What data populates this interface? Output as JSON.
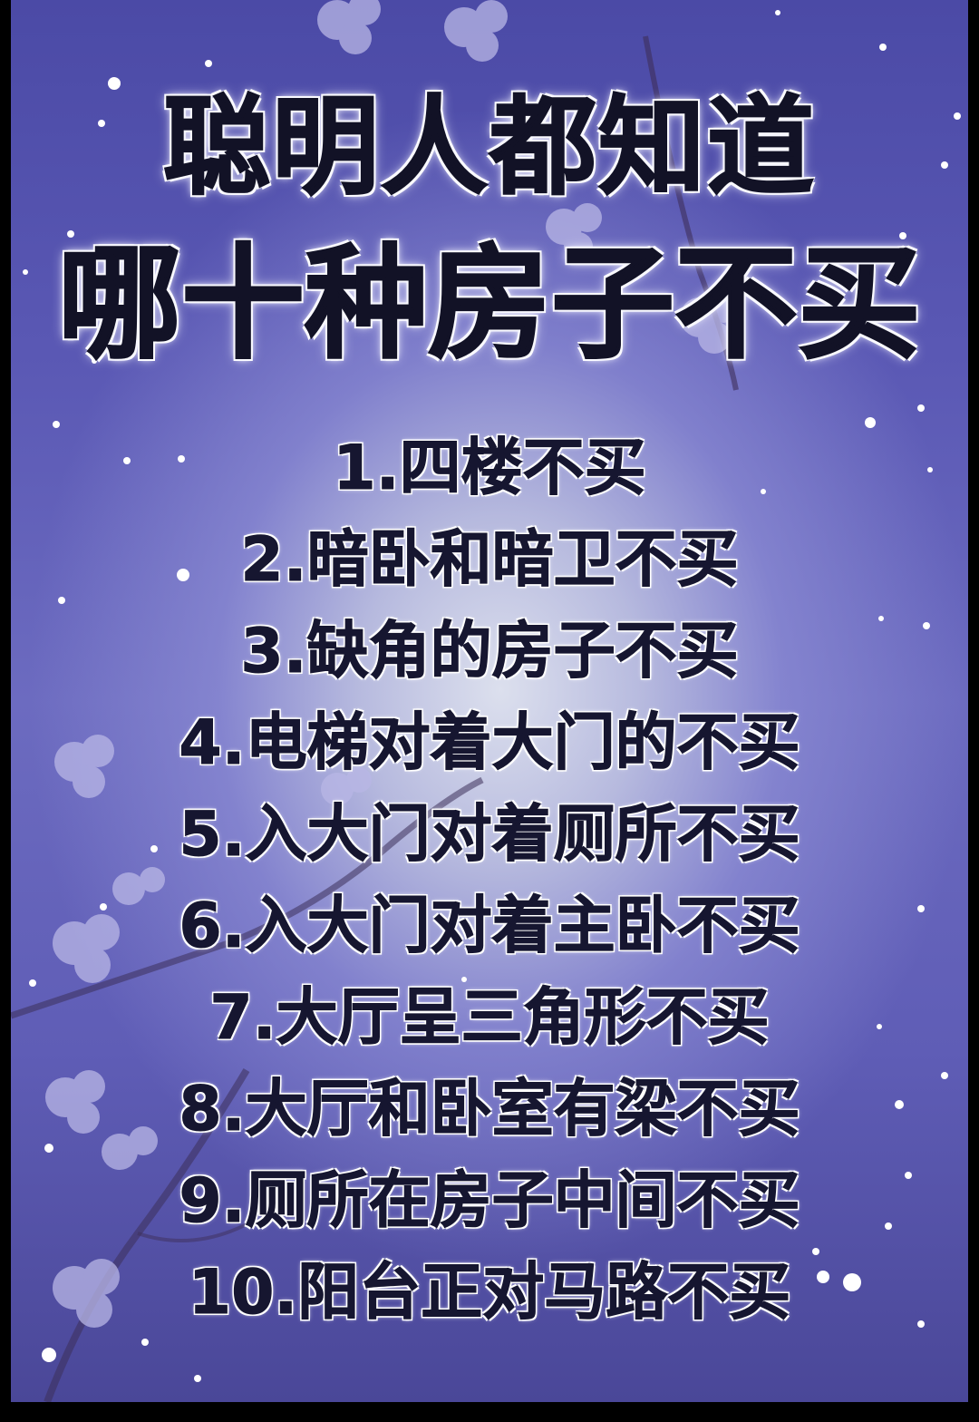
{
  "poster": {
    "title_line1": "聪明人都知道",
    "title_line2": "哪十种房子不买",
    "items": [
      "1.四楼不买",
      "2.暗卧和暗卫不买",
      "3.缺角的房子不买",
      "4.电梯对着大门的不买",
      "5.入大门对着厕所不买",
      "6.入大门对着主卧不买",
      "7.大厅呈三角形不买",
      "8.大厅和卧室有梁不买",
      "9.厕所在房子中间不买",
      "10.阳台正对马路不买"
    ]
  },
  "colors": {
    "background_top": "#4b4aa6",
    "background_glow": "#e2e6f0",
    "text": "#121226",
    "text_outline": "#ffffff"
  }
}
